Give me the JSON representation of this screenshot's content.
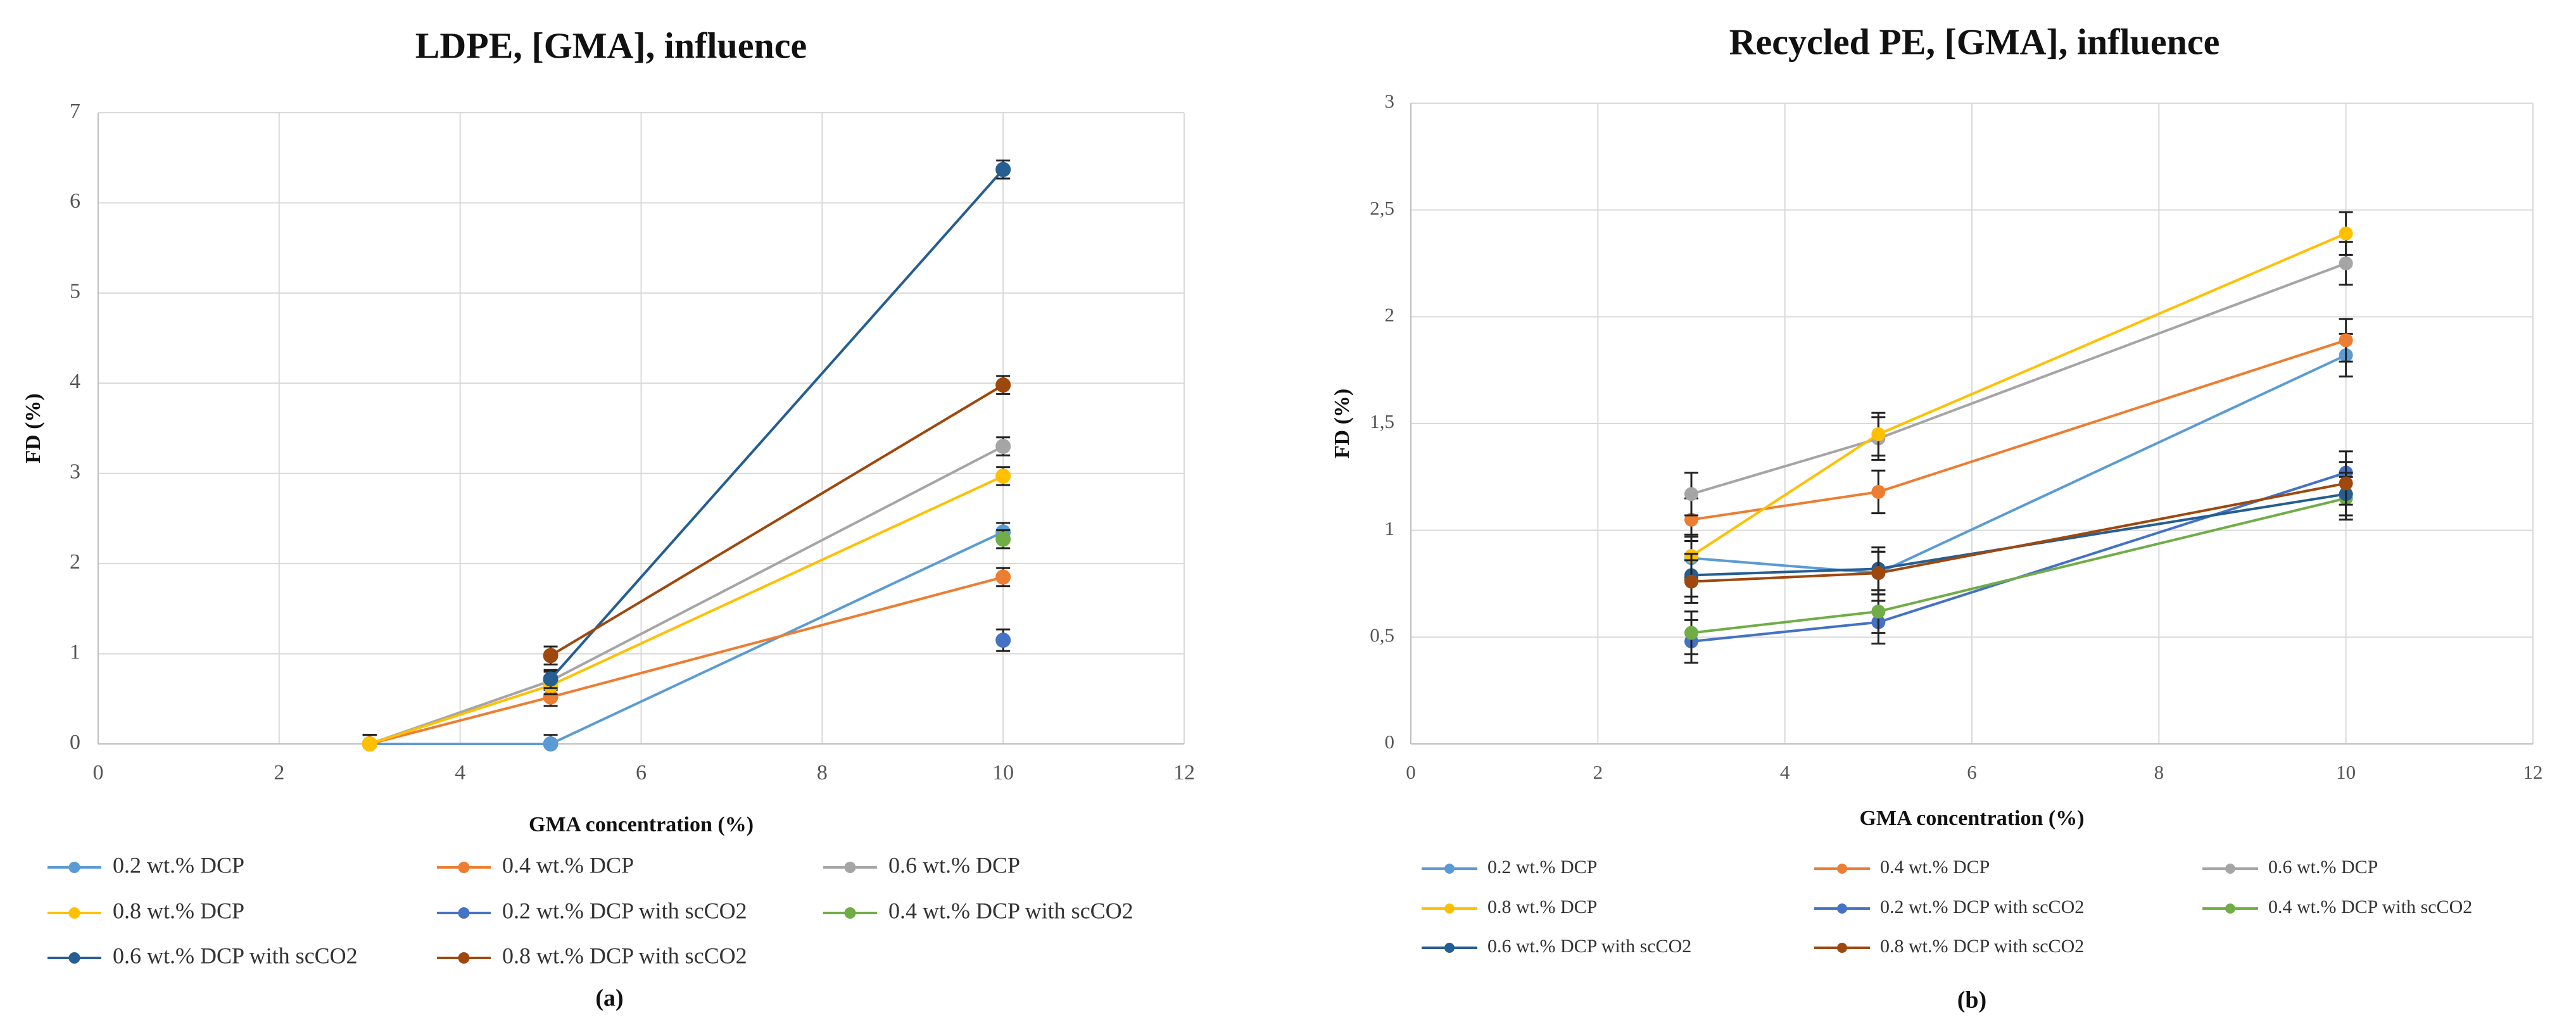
{
  "chart_data": [
    {
      "id": "a",
      "type": "line",
      "title": "LDPE, [GMA], influence",
      "xlabel": "GMA concentration (%)",
      "ylabel": "FD (%)",
      "xlim": [
        0,
        12
      ],
      "ylim": [
        0,
        7
      ],
      "xticks": [
        0,
        2,
        4,
        6,
        8,
        10,
        12
      ],
      "yticks": [
        0,
        1,
        2,
        3,
        4,
        5,
        6,
        7
      ],
      "xtick_labels": [
        "0",
        "2",
        "4",
        "6",
        "8",
        "10",
        "12"
      ],
      "ytick_labels": [
        "0",
        "1",
        "2",
        "3",
        "4",
        "5",
        "6",
        "7"
      ],
      "panel_label": "(a)",
      "legend_position": "bottom",
      "series": [
        {
          "name": "0.2 wt.% DCP",
          "color": "#5b9bd5",
          "x": [
            3,
            5,
            10
          ],
          "y": [
            0,
            0,
            2.35
          ],
          "err": [
            0.1,
            0.1,
            0.1
          ]
        },
        {
          "name": "0.4 wt.% DCP",
          "color": "#ed7d31",
          "x": [
            3,
            5,
            10
          ],
          "y": [
            0,
            0.52,
            1.85
          ],
          "err": [
            0.1,
            0.1,
            0.1
          ]
        },
        {
          "name": "0.6 wt.% DCP",
          "color": "#a5a5a5",
          "x": [
            3,
            5,
            10
          ],
          "y": [
            0,
            0.7,
            3.3
          ],
          "err": [
            0.1,
            0.1,
            0.1
          ]
        },
        {
          "name": "0.8 wt.% DCP",
          "color": "#ffc000",
          "x": [
            3,
            5,
            10
          ],
          "y": [
            0,
            0.65,
            2.97
          ],
          "err": [
            0.1,
            0.1,
            0.1
          ]
        },
        {
          "name": "0.2 wt.% DCP with scCO2",
          "color": "#4472c4",
          "x": [
            10
          ],
          "y": [
            1.15
          ],
          "err": [
            0.12
          ]
        },
        {
          "name": "0.4 wt.% DCP with scCO2",
          "color": "#70ad47",
          "x": [
            10
          ],
          "y": [
            2.27
          ],
          "err": [
            0.1
          ]
        },
        {
          "name": "0.6 wt.% DCP with scCO2",
          "color": "#255e91",
          "x": [
            5,
            10
          ],
          "y": [
            0.72,
            6.37
          ],
          "err": [
            0.1,
            0.1
          ]
        },
        {
          "name": "0.8 wt.% DCP with scCO2",
          "color": "#9e480e",
          "x": [
            5,
            10
          ],
          "y": [
            0.98,
            3.98
          ],
          "err": [
            0.1,
            0.1
          ]
        }
      ]
    },
    {
      "id": "b",
      "type": "line",
      "title": "Recycled PE, [GMA], influence",
      "xlabel": "GMA concentration (%)",
      "ylabel": "FD (%)",
      "xlim": [
        0,
        12
      ],
      "ylim": [
        0,
        3
      ],
      "xticks": [
        0,
        2,
        4,
        6,
        8,
        10,
        12
      ],
      "yticks": [
        0,
        0.5,
        1,
        1.5,
        2,
        2.5,
        3
      ],
      "xtick_labels": [
        "0",
        "2",
        "4",
        "6",
        "8",
        "10",
        "12"
      ],
      "ytick_labels": [
        "0",
        "0,5",
        "1",
        "1,5",
        "2",
        "2,5",
        "3"
      ],
      "panel_label": "(b)",
      "legend_position": "bottom",
      "series": [
        {
          "name": "0.2 wt.% DCP",
          "color": "#5b9bd5",
          "x": [
            3,
            5,
            10
          ],
          "y": [
            0.87,
            0.8,
            1.82
          ],
          "err": [
            0.1,
            0.1,
            0.1
          ]
        },
        {
          "name": "0.4 wt.% DCP",
          "color": "#ed7d31",
          "x": [
            3,
            5,
            10
          ],
          "y": [
            1.05,
            1.18,
            1.89
          ],
          "err": [
            0.1,
            0.1,
            0.1
          ]
        },
        {
          "name": "0.6 wt.% DCP",
          "color": "#a5a5a5",
          "x": [
            3,
            5,
            10
          ],
          "y": [
            1.17,
            1.43,
            2.25
          ],
          "err": [
            0.1,
            0.1,
            0.1
          ]
        },
        {
          "name": "0.8 wt.% DCP",
          "color": "#ffc000",
          "x": [
            3,
            5,
            10
          ],
          "y": [
            0.88,
            1.45,
            2.39
          ],
          "err": [
            0.1,
            0.1,
            0.1
          ]
        },
        {
          "name": "0.2 wt.% DCP with scCO2",
          "color": "#4472c4",
          "x": [
            3,
            5,
            10
          ],
          "y": [
            0.48,
            0.57,
            1.27
          ],
          "err": [
            0.1,
            0.1,
            0.1
          ]
        },
        {
          "name": "0.4 wt.% DCP with scCO2",
          "color": "#70ad47",
          "x": [
            3,
            5,
            10
          ],
          "y": [
            0.52,
            0.62,
            1.15
          ],
          "err": [
            0.1,
            0.1,
            0.1
          ]
        },
        {
          "name": "0.6 wt.% DCP with scCO2",
          "color": "#255e91",
          "x": [
            3,
            5,
            10
          ],
          "y": [
            0.79,
            0.82,
            1.17
          ],
          "err": [
            0.1,
            0.1,
            0.1
          ]
        },
        {
          "name": "0.8 wt.% DCP with scCO2",
          "color": "#9e480e",
          "x": [
            3,
            5,
            10
          ],
          "y": [
            0.76,
            0.8,
            1.22
          ],
          "err": [
            0.1,
            0.1,
            0.1
          ]
        }
      ]
    }
  ]
}
